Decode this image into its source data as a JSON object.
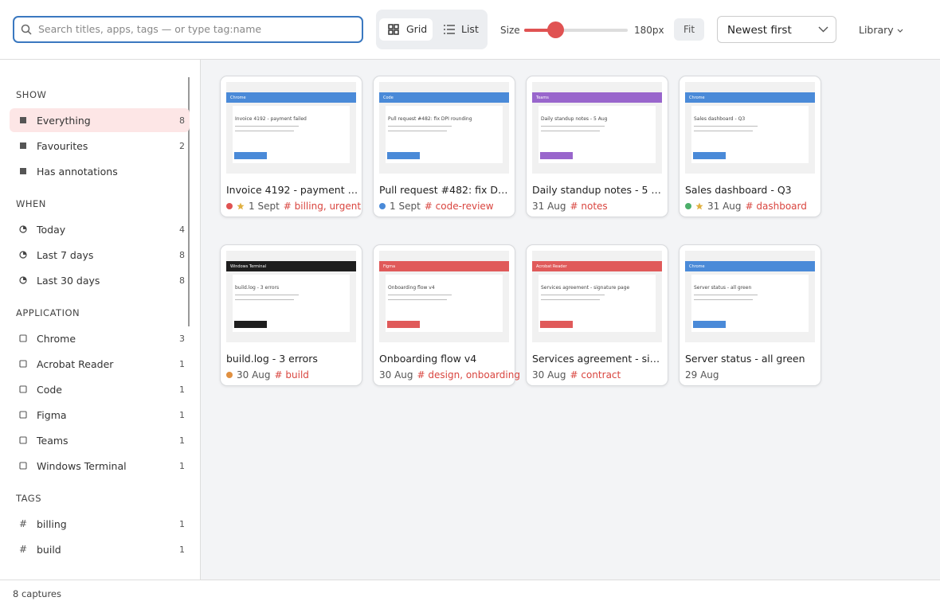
{
  "toolbar": {
    "search_placeholder": "Search titles, apps, tags — or type tag:name",
    "views": [
      "Grid",
      "List"
    ],
    "size_label": "Size",
    "size_value": "180px",
    "fit": "Fit",
    "sort": "Newest first",
    "library": "Library"
  },
  "sidebar": {
    "sections": [
      {
        "title": "SHOW",
        "items": [
          {
            "label": "Everything",
            "count": 8
          },
          {
            "label": "Favourites",
            "count": 2
          },
          {
            "label": "Has annotations"
          }
        ]
      },
      {
        "title": "WHEN",
        "items": [
          {
            "label": "Today",
            "count": 4
          },
          {
            "label": "Last 7 days",
            "count": 8
          },
          {
            "label": "Last 30 days",
            "count": 8
          }
        ]
      },
      {
        "title": "APPLICATION",
        "items": [
          {
            "label": "Chrome",
            "count": 3
          },
          {
            "label": "Acrobat Reader",
            "count": 1
          },
          {
            "label": "Code",
            "count": 1
          },
          {
            "label": "Figma",
            "count": 1
          },
          {
            "label": "Teams",
            "count": 1
          },
          {
            "label": "Windows Terminal",
            "count": 1
          }
        ]
      },
      {
        "title": "TAGS",
        "items": [
          {
            "icon": "#",
            "label": "billing",
            "count": 1
          },
          {
            "icon": "#",
            "label": "build",
            "count": 1
          }
        ]
      }
    ]
  },
  "cards": [
    {
      "title": "Invoice 4192 - payment failed",
      "date": "1 Sept",
      "tags": "# billing, urgent",
      "dot": "#e05252",
      "favourite": true,
      "thumb": {
        "app": "Chrome",
        "heading": "Invoice 4192 - payment failed",
        "color": "#4a8ad8"
      }
    },
    {
      "title": "Pull request #482: fix DPI rounding",
      "date": "1 Sept",
      "tags": "# code-review",
      "dot": "#4a8ad8",
      "favourite": false,
      "thumb": {
        "app": "Code",
        "heading": "Pull request #482: fix DPI rounding",
        "color": "#4a8ad8"
      }
    },
    {
      "title": "Daily standup notes - 5 Aug",
      "date": "31 Aug",
      "tags": "# notes",
      "favourite": false,
      "thumb": {
        "app": "Teams",
        "heading": "Daily standup notes - 5 Aug",
        "color": "#9966cc"
      }
    },
    {
      "title": "Sales dashboard - Q3",
      "date": "31 Aug",
      "tags": "# dashboard",
      "dot": "#4caf6a",
      "favourite": true,
      "thumb": {
        "app": "Chrome",
        "heading": "Sales dashboard - Q3",
        "color": "#4a8ad8"
      }
    },
    {
      "title": "build.log - 3 errors",
      "date": "30 Aug",
      "tags": "# build",
      "dot": "#e09040",
      "favourite": false,
      "thumb": {
        "app": "Windows Terminal",
        "heading": "build.log - 3 errors",
        "color": "#1e1e1e"
      }
    },
    {
      "title": "Onboarding flow v4",
      "date": "30 Aug",
      "tags": "# design, onboarding",
      "favourite": false,
      "thumb": {
        "app": "Figma",
        "heading": "Onboarding flow v4",
        "color": "#e05a5a"
      }
    },
    {
      "title": "Services agreement - signature page",
      "date": "30 Aug",
      "tags": "# contract",
      "favourite": false,
      "thumb": {
        "app": "Acrobat Reader",
        "heading": "Services agreement - signature page",
        "color": "#e05a5a"
      }
    },
    {
      "title": "Server status - all green",
      "date": "29 Aug",
      "favourite": false,
      "thumb": {
        "app": "Chrome",
        "heading": "Server status - all green",
        "color": "#4a8ad8"
      }
    }
  ],
  "footer": "8 captures"
}
